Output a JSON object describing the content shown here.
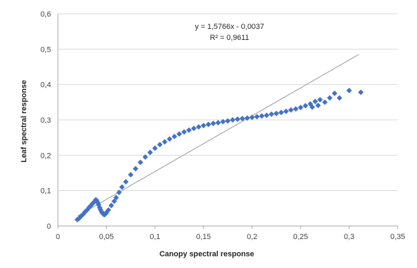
{
  "chart_data": {
    "type": "scatter",
    "xlabel": "Canopy spectral response",
    "ylabel": "Leaf spectral response",
    "xlim": [
      0,
      0.35
    ],
    "ylim": [
      0,
      0.6
    ],
    "x_ticks": [
      "0",
      "0,05",
      "0,1",
      "0,15",
      "0,2",
      "0,25",
      "0,3",
      "0,35"
    ],
    "y_ticks": [
      "0",
      "0,1",
      "0,2",
      "0,3",
      "0,4",
      "0,5",
      "0,6"
    ],
    "grid": "horizontal",
    "legend": "none",
    "colors": {
      "points": "#4472C4",
      "trendline": "#A6A6A6",
      "grid": "#D9D9D9"
    },
    "annotation": {
      "equation": "y = 1,5766x - 0,0037",
      "r_squared": "R² = 0,9611"
    },
    "trendline": {
      "slope": 1.5766,
      "intercept": -0.0037,
      "x_range": [
        0.02,
        0.31
      ]
    },
    "series": [
      {
        "x": [
          0.02,
          0.022,
          0.024,
          0.026,
          0.028,
          0.03,
          0.032,
          0.034,
          0.036,
          0.038,
          0.039,
          0.04,
          0.041,
          0.042,
          0.043,
          0.044,
          0.045,
          0.046,
          0.047,
          0.048,
          0.049,
          0.05,
          0.052,
          0.055,
          0.058,
          0.06,
          0.063,
          0.066,
          0.07,
          0.075,
          0.08,
          0.085,
          0.09,
          0.095,
          0.1,
          0.105,
          0.11,
          0.115,
          0.12,
          0.125,
          0.13,
          0.135,
          0.14,
          0.145,
          0.15,
          0.155,
          0.16,
          0.165,
          0.17,
          0.175,
          0.18,
          0.185,
          0.19,
          0.195,
          0.2,
          0.205,
          0.21,
          0.215,
          0.22,
          0.225,
          0.23,
          0.235,
          0.24,
          0.245,
          0.25,
          0.255,
          0.26,
          0.262,
          0.265,
          0.268,
          0.27,
          0.275,
          0.28,
          0.285,
          0.29,
          0.3,
          0.312
        ],
        "y": [
          0.018,
          0.022,
          0.028,
          0.033,
          0.04,
          0.045,
          0.052,
          0.058,
          0.064,
          0.07,
          0.074,
          0.072,
          0.066,
          0.06,
          0.052,
          0.046,
          0.04,
          0.036,
          0.033,
          0.032,
          0.034,
          0.038,
          0.045,
          0.058,
          0.07,
          0.08,
          0.095,
          0.11,
          0.125,
          0.145,
          0.162,
          0.18,
          0.195,
          0.208,
          0.22,
          0.23,
          0.238,
          0.246,
          0.253,
          0.26,
          0.266,
          0.271,
          0.276,
          0.28,
          0.284,
          0.287,
          0.29,
          0.292,
          0.295,
          0.297,
          0.3,
          0.302,
          0.304,
          0.305,
          0.307,
          0.309,
          0.311,
          0.313,
          0.316,
          0.318,
          0.321,
          0.324,
          0.328,
          0.331,
          0.335,
          0.34,
          0.345,
          0.336,
          0.352,
          0.341,
          0.357,
          0.35,
          0.362,
          0.375,
          0.362,
          0.383,
          0.378
        ]
      }
    ]
  }
}
